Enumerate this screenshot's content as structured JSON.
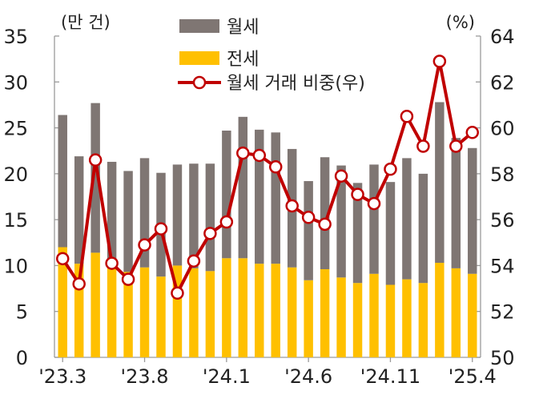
{
  "chart_data": {
    "type": "bar+line",
    "left_axis_unit": "(만 건)",
    "right_axis_unit": "(%)",
    "x_tick_labels": [
      "'23.3",
      "'23.8",
      "'24.1",
      "'24.6",
      "'24.11",
      "'25.4"
    ],
    "left_ticks": [
      "0",
      "5",
      "10",
      "15",
      "20",
      "25",
      "30",
      "35"
    ],
    "right_ticks": [
      "50",
      "52",
      "54",
      "56",
      "58",
      "60",
      "62",
      "64"
    ],
    "left_ylim": [
      0,
      35
    ],
    "right_ylim": [
      50,
      64
    ],
    "stacked": true,
    "grid": false,
    "legend_position": "top-center",
    "series": [
      {
        "name": "월세",
        "type": "bar",
        "color": "#7f7673",
        "values": [
          14.4,
          11.7,
          16.3,
          11.4,
          11.0,
          11.9,
          11.3,
          11.0,
          11.4,
          11.7,
          13.9,
          15.4,
          14.6,
          14.3,
          12.9,
          10.8,
          12.2,
          12.2,
          10.9,
          11.9,
          11.2,
          13.2,
          11.9,
          17.5,
          14.2,
          13.7
        ]
      },
      {
        "name": "전세",
        "type": "bar",
        "color": "#ffc000",
        "values": [
          12.0,
          10.2,
          11.4,
          9.9,
          9.3,
          9.8,
          8.8,
          10.0,
          9.7,
          9.4,
          10.8,
          10.8,
          10.2,
          10.2,
          9.8,
          8.4,
          9.6,
          8.7,
          8.1,
          9.1,
          7.9,
          8.5,
          8.1,
          10.3,
          9.7,
          9.1
        ]
      },
      {
        "name": "월세 거래 비중(우)",
        "type": "line",
        "axis": "right",
        "color": "#c00000",
        "values": [
          54.3,
          53.2,
          58.6,
          54.1,
          53.4,
          54.9,
          55.6,
          52.8,
          54.2,
          55.4,
          55.9,
          58.9,
          58.8,
          58.3,
          56.6,
          56.1,
          55.8,
          57.9,
          57.1,
          56.7,
          58.2,
          60.5,
          59.2,
          62.9,
          59.2,
          59.8
        ]
      }
    ]
  }
}
